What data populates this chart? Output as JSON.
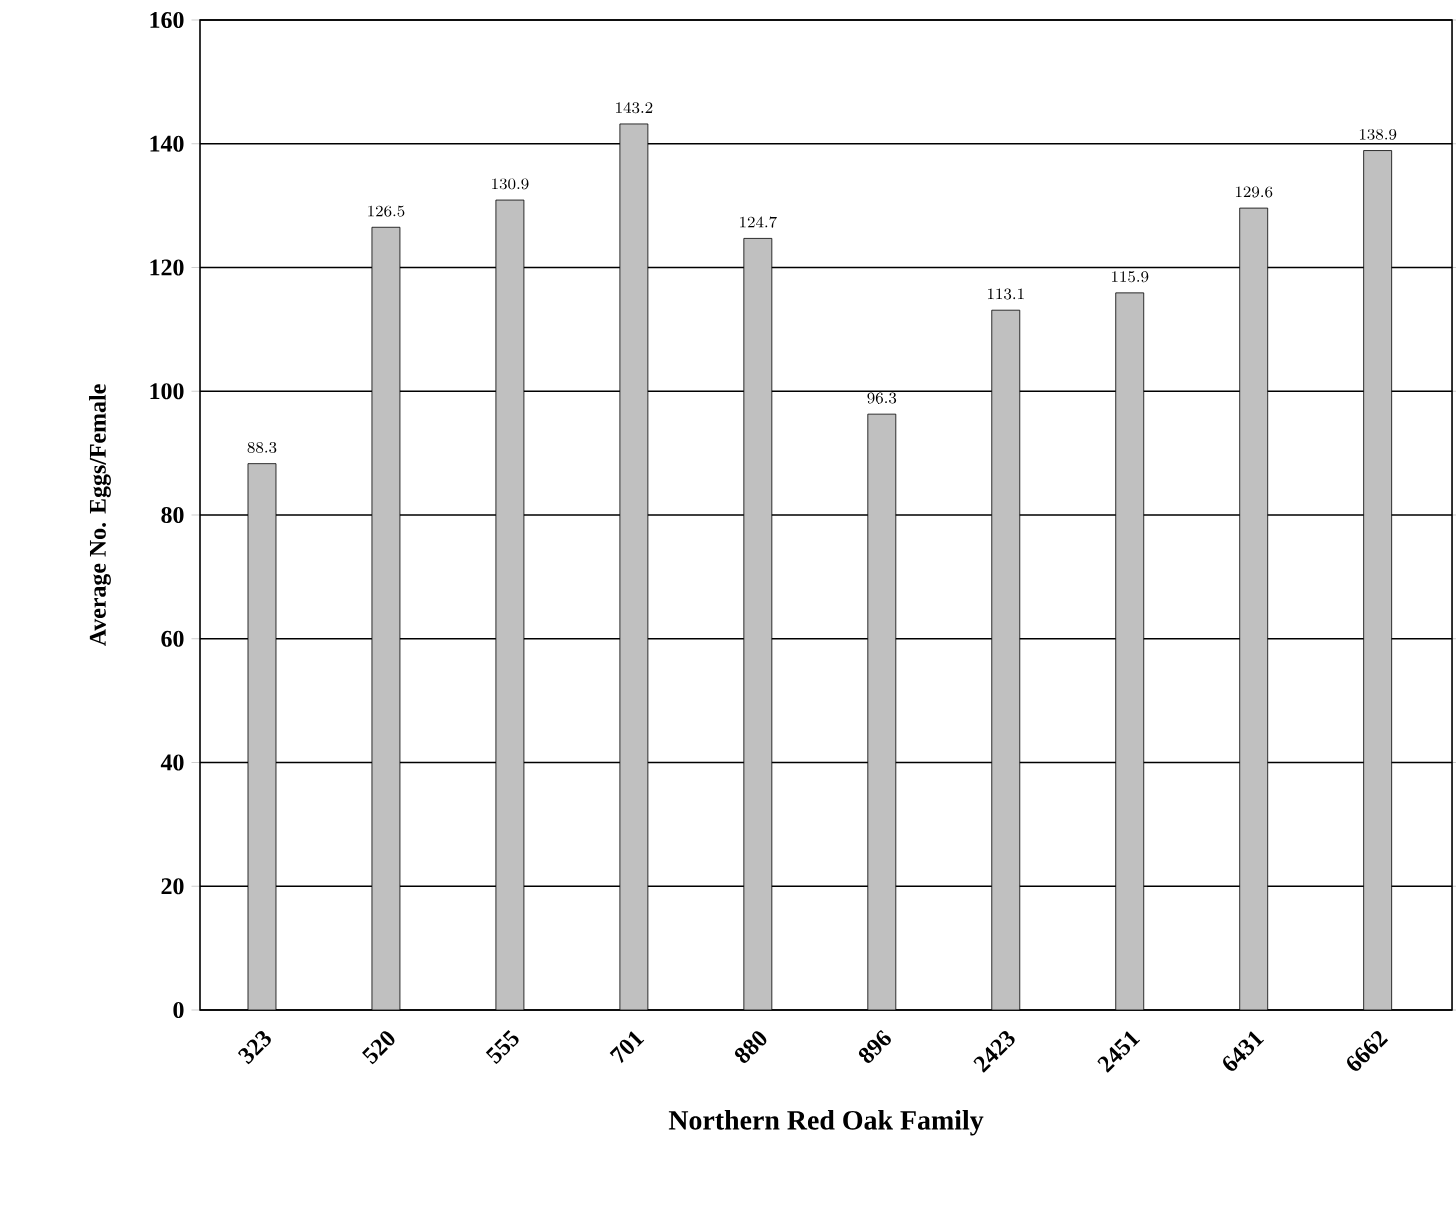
{
  "chart_data": {
    "type": "bar",
    "xlabel": "Northern Red Oak Family",
    "ylabel": "Average No. Eggs/Female",
    "categories": [
      "323",
      "520",
      "555",
      "701",
      "880",
      "896",
      "2423",
      "2451",
      "6431",
      "6662"
    ],
    "values": [
      88.3,
      126.5,
      130.9,
      143.2,
      124.7,
      96.3,
      113.1,
      115.9,
      129.6,
      138.9
    ],
    "color": "#c0c0c0",
    "ylim": [
      0,
      160
    ],
    "yticks": [
      0,
      20,
      40,
      60,
      80,
      100,
      120,
      140,
      160
    ],
    "grid": "y",
    "data_labels": true
  }
}
